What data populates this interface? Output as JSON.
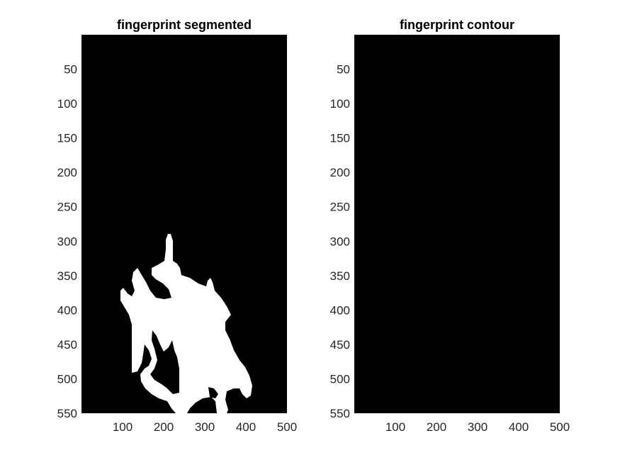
{
  "figure": {
    "background": "#ffffff",
    "image_background": "#000000",
    "foreground": "#ffffff",
    "tick_color": "#262626"
  },
  "panels": [
    {
      "title": "fingerprint segmented",
      "kind": "filled-mask",
      "x_ticks": [
        "100",
        "200",
        "300",
        "400",
        "500"
      ],
      "y_ticks": [
        "50",
        "100",
        "150",
        "200",
        "250",
        "300",
        "350",
        "400",
        "450",
        "500",
        "550"
      ]
    },
    {
      "title": "fingerprint contour",
      "kind": "contour-outline",
      "x_ticks": [
        "100",
        "200",
        "300",
        "400",
        "500"
      ],
      "y_ticks": [
        "50",
        "100",
        "150",
        "200",
        "250",
        "300",
        "350",
        "400",
        "450",
        "500",
        "550"
      ]
    }
  ],
  "image_x_range": [
    0,
    500
  ],
  "image_y_range": [
    0,
    550
  ],
  "x_tick_values": [
    100,
    200,
    300,
    400,
    500
  ],
  "y_tick_values": [
    50,
    100,
    150,
    200,
    250,
    300,
    350,
    400,
    450,
    500,
    550
  ]
}
